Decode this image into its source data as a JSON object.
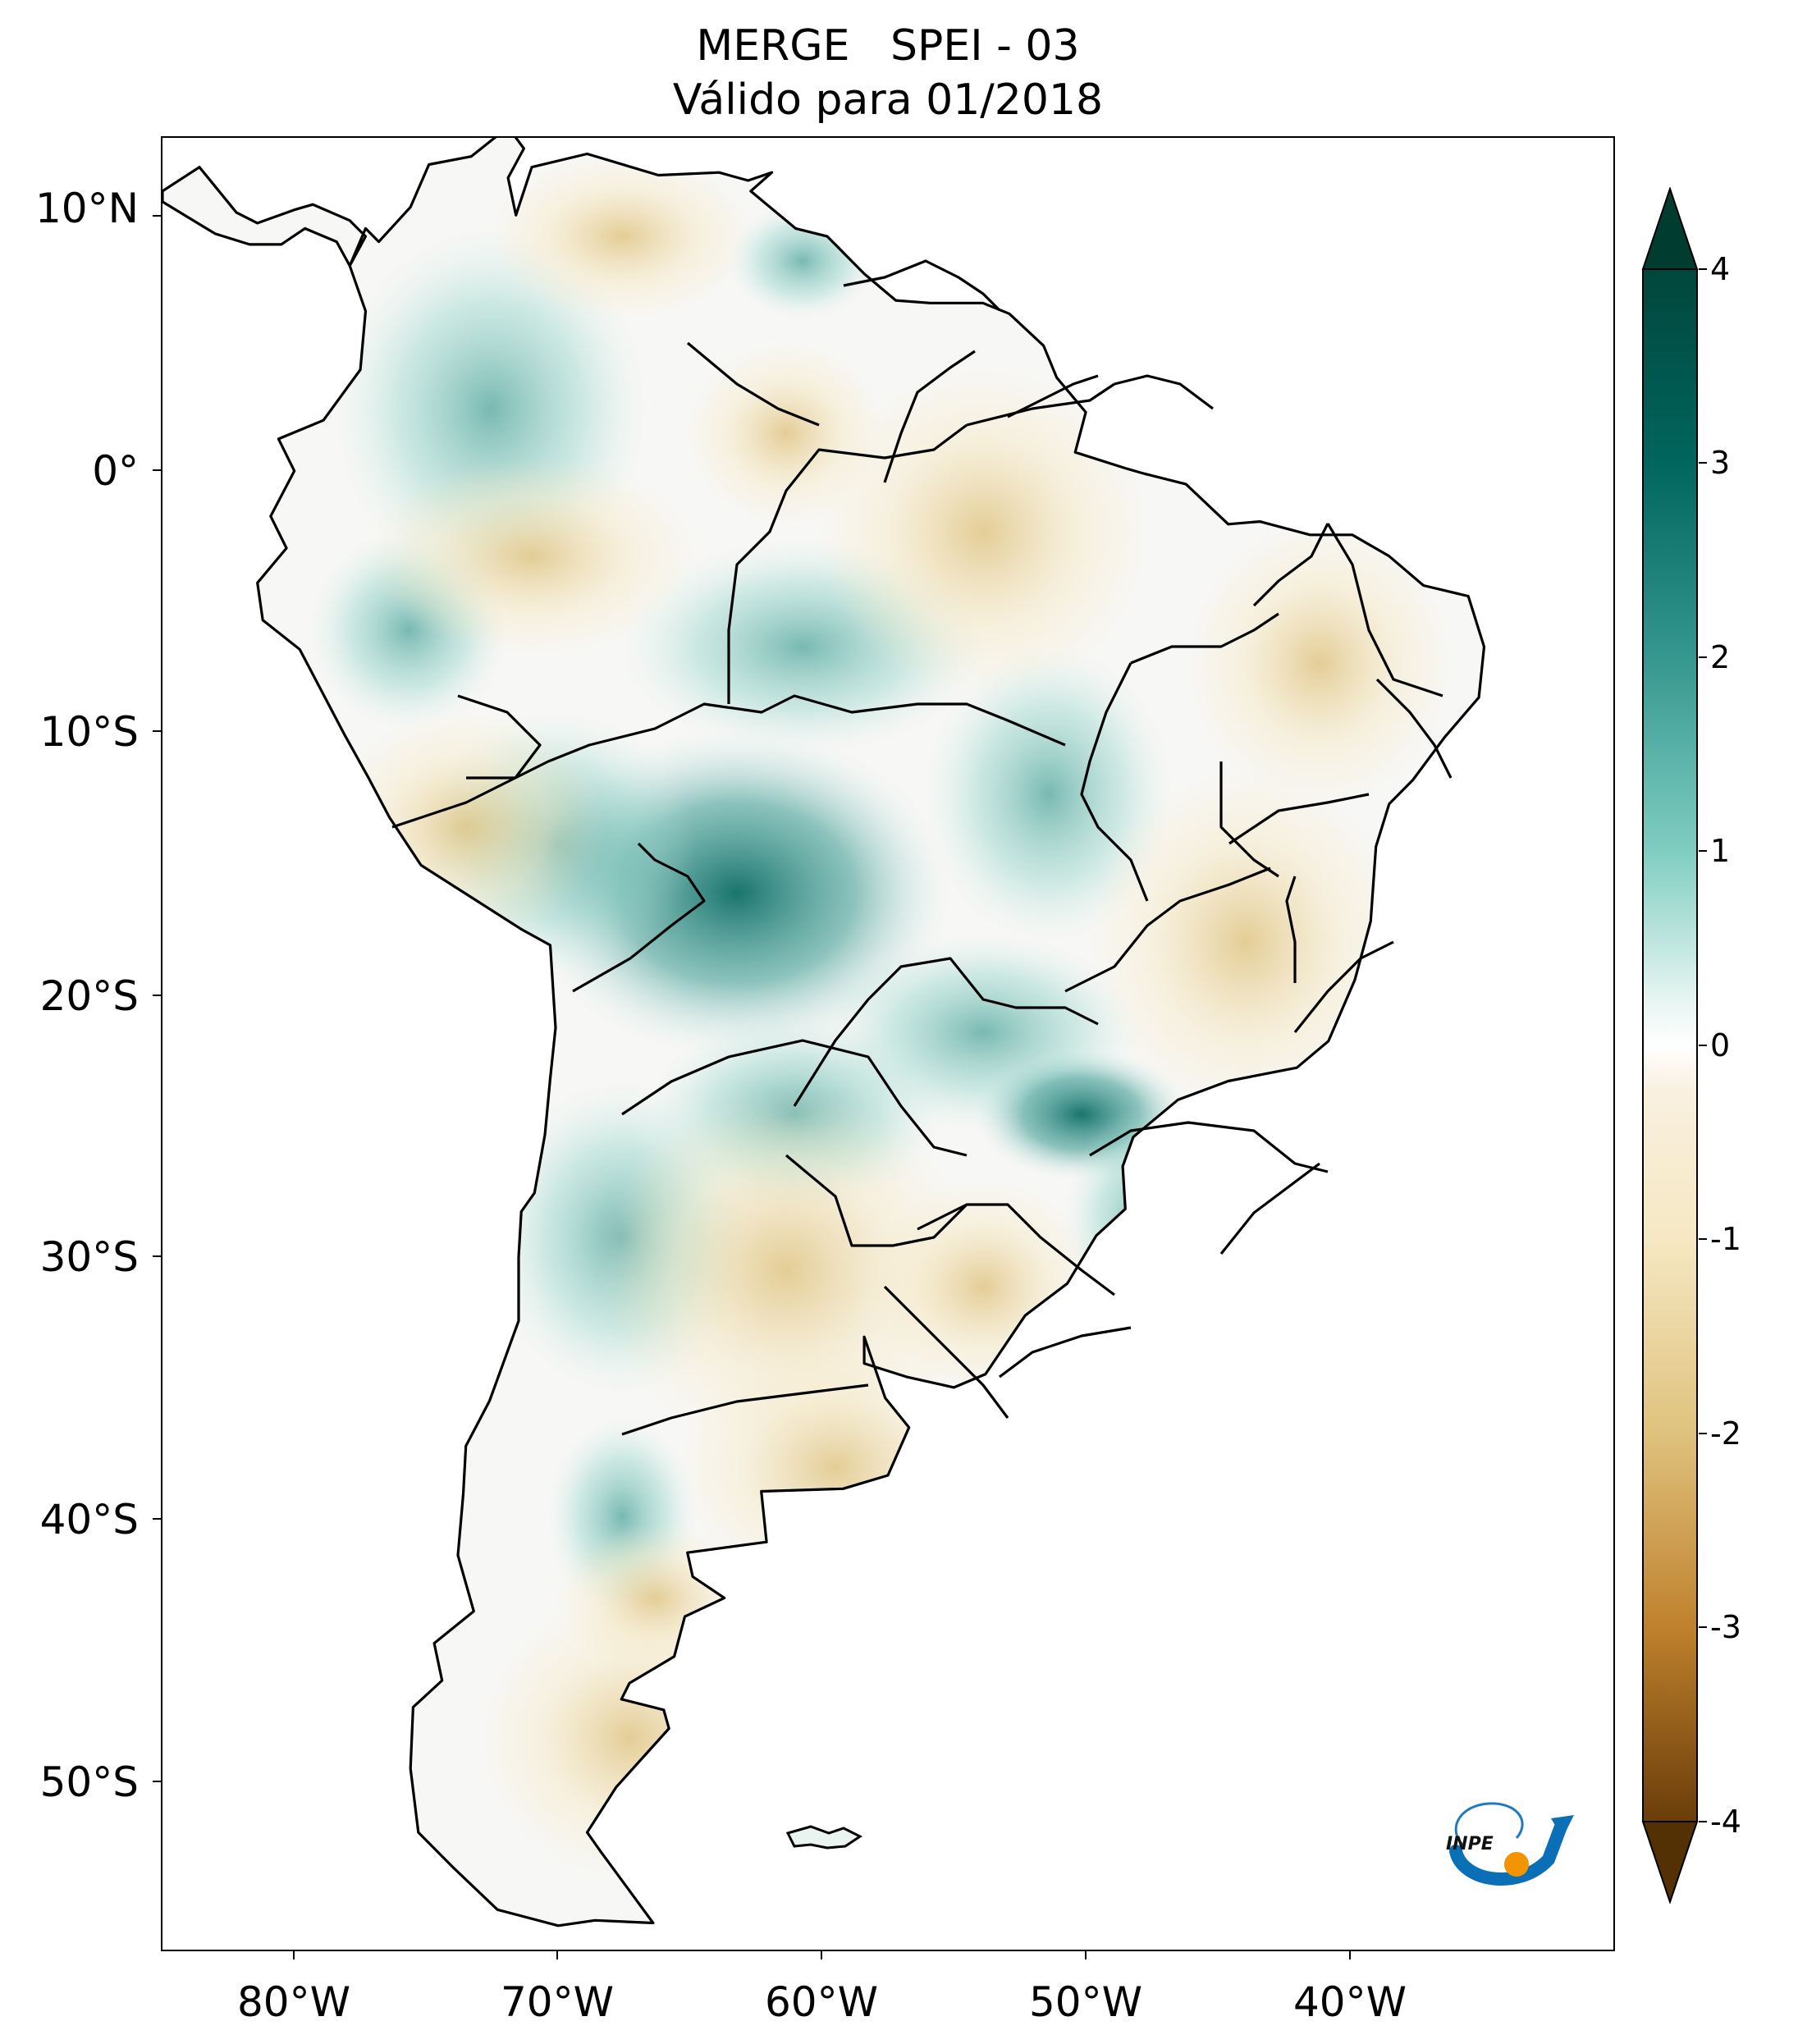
{
  "title": {
    "line1": "MERGE   SPEI - 03",
    "line2": "Válido para 01/2018"
  },
  "map": {
    "region": "South America",
    "lon_range": [
      -85,
      -30
    ],
    "lat_range": [
      -56,
      12
    ],
    "variable": "SPEI - 03",
    "source": "MERGE",
    "x_ticks": [
      {
        "lon": -80,
        "label": "80°W"
      },
      {
        "lon": -70,
        "label": "70°W"
      },
      {
        "lon": -60,
        "label": "60°W"
      },
      {
        "lon": -50,
        "label": "50°W"
      },
      {
        "lon": -40,
        "label": "40°W"
      }
    ],
    "y_ticks": [
      {
        "lat": 10,
        "label": "10°N"
      },
      {
        "lat": 0,
        "label": "0°"
      },
      {
        "lat": -10,
        "label": "10°S"
      },
      {
        "lat": -20,
        "label": "20°S"
      },
      {
        "lat": -30,
        "label": "30°S"
      },
      {
        "lat": -40,
        "label": "40°S"
      },
      {
        "lat": -50,
        "label": "50°S"
      }
    ]
  },
  "colorbar": {
    "min": -4,
    "max": 4,
    "extend": "both",
    "ticks": [
      {
        "value": 4,
        "label": "4"
      },
      {
        "value": 3,
        "label": "3"
      },
      {
        "value": 2,
        "label": "2"
      },
      {
        "value": 1,
        "label": "1"
      },
      {
        "value": 0,
        "label": "0"
      },
      {
        "value": -1,
        "label": "-1"
      },
      {
        "value": -2,
        "label": "-2"
      },
      {
        "value": -3,
        "label": "-3"
      },
      {
        "value": -4,
        "label": "-4"
      }
    ],
    "colors": {
      "wet_max": "#003c30",
      "wet_mid": "#35978f",
      "wet_low": "#c7eae5",
      "neutral": "#f5f5f5",
      "dry_low": "#f6e8c3",
      "dry_mid": "#bf812d",
      "dry_max": "#543005"
    }
  },
  "logo": {
    "text": "INPE"
  }
}
